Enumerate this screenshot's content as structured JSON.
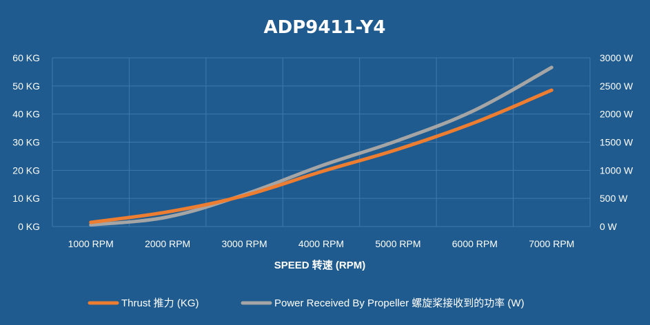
{
  "chart_data": {
    "type": "line",
    "title": "ADP9411-Y4",
    "categories": [
      "1000 RPM",
      "2000 RPM",
      "3000 RPM",
      "4000 RPM",
      "5000 RPM",
      "6000 RPM",
      "7000 RPM"
    ],
    "xlabel": "SPEED 转速 (RPM)",
    "y_left": {
      "ticks": [
        "0 KG",
        "10 KG",
        "20 KG",
        "30 KG",
        "40 KG",
        "50 KG",
        "60 KG"
      ],
      "ylim": [
        0,
        60
      ],
      "unit": "KG"
    },
    "y_right": {
      "ticks": [
        "0 W",
        "500 W",
        "1000 W",
        "1500 W",
        "2000 W",
        "2500 W",
        "3000 W"
      ],
      "ylim": [
        0,
        3000
      ],
      "unit": "W"
    },
    "grid": true,
    "legend_position": "bottom",
    "series": [
      {
        "name": "Thrust 推力 (KG)",
        "axis": "left",
        "color": "#ed7d31",
        "values": [
          1.5,
          5.2,
          11,
          19.5,
          27.5,
          37,
          48.5
        ]
      },
      {
        "name": "Power Received By Propeller 螺旋桨接收到的功率 (W)",
        "axis": "right",
        "color": "#a5a5a5",
        "values": [
          30,
          170,
          570,
          1080,
          1530,
          2070,
          2830
        ]
      }
    ]
  }
}
